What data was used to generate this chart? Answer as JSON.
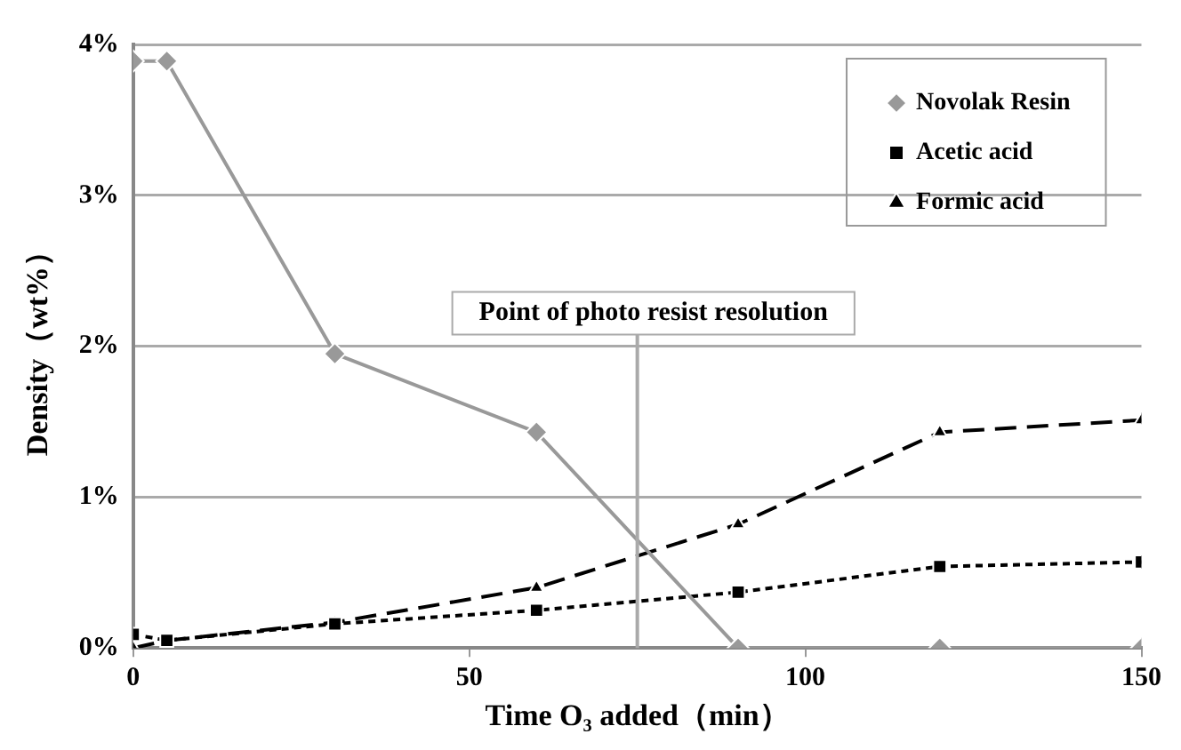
{
  "chart_data": {
    "type": "line",
    "xlabel": "Time O₃ added（min）",
    "ylabel": "Density（wt%）",
    "xlim": [
      0,
      150
    ],
    "xticks": [
      0,
      50,
      100,
      150
    ],
    "ylim": [
      0,
      4
    ],
    "yticks": [
      {
        "value": 0,
        "label": "0%"
      },
      {
        "value": 1,
        "label": "1%"
      },
      {
        "value": 2,
        "label": "2%"
      },
      {
        "value": 3,
        "label": "3%"
      },
      {
        "value": 4,
        "label": "4%"
      }
    ],
    "grid": "y",
    "legend": "top right",
    "series": [
      {
        "name": "Novolak Resin",
        "color": "#999999",
        "marker": "diamond",
        "line_style": "solid",
        "x": [
          0,
          5,
          30,
          60,
          90,
          120,
          150
        ],
        "values": [
          3.89,
          3.89,
          1.95,
          1.43,
          0,
          0,
          0
        ]
      },
      {
        "name": "Acetic acid",
        "color": "#000000",
        "marker": "square",
        "line_style": "dotted",
        "x": [
          0,
          5,
          30,
          60,
          90,
          120,
          150
        ],
        "values": [
          0.09,
          0.05,
          0.16,
          0.25,
          0.37,
          0.54,
          0.57
        ]
      },
      {
        "name": "Formic acid",
        "color": "#000000",
        "marker": "triangle",
        "line_style": "dashed",
        "x": [
          0,
          5,
          30,
          60,
          90,
          120,
          150
        ],
        "values": [
          0,
          0.05,
          0.17,
          0.4,
          0.82,
          1.43,
          1.51
        ]
      }
    ],
    "ref_lines": [
      {
        "axis": "x",
        "value": 75,
        "label": "Point of photo resist resolution",
        "color": "#aaaaaa"
      }
    ]
  }
}
